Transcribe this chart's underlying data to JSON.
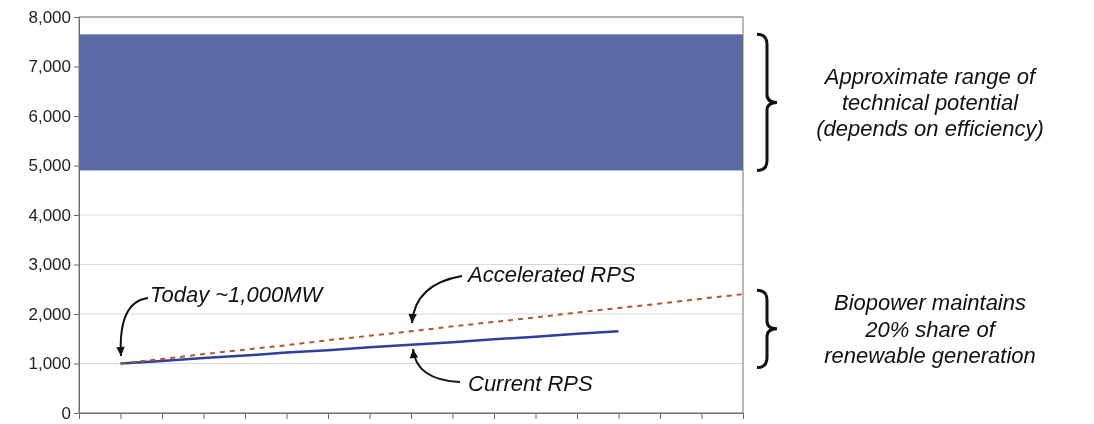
{
  "chart_data": {
    "type": "line",
    "categories": [
      null,
      null,
      null,
      null,
      null,
      null,
      null,
      null,
      null,
      null,
      null,
      null,
      null,
      null,
      null,
      null,
      null
    ],
    "ylim": [
      0,
      8000
    ],
    "yticks": [
      0,
      {
        "value": 1000,
        "label": "1,000"
      },
      {
        "value": 2000,
        "label": "2,000"
      },
      {
        "value": 3000,
        "label": "3,000"
      },
      {
        "value": 4000,
        "label": "4,000"
      },
      {
        "value": 5000,
        "label": "5,000"
      },
      {
        "value": 6000,
        "label": "6,000"
      },
      {
        "value": 7000,
        "label": "7,000"
      },
      {
        "value": 8000,
        "label": "8,000"
      }
    ],
    "tick_labels": "y",
    "grid": "y",
    "series": [
      {
        "color": "#2e3f9e",
        "line_style": "solid",
        "values": [
          null,
          1000,
          1050,
          1110,
          1160,
          1220,
          1270,
          1330,
          1380,
          1430,
          1490,
          1540,
          1600,
          1650,
          null,
          null,
          null
        ]
      },
      {
        "color": "#b5532a",
        "line_style": "dashed",
        "values": [
          null,
          1000,
          1090,
          1190,
          1280,
          1370,
          1470,
          1560,
          1650,
          1750,
          1840,
          1930,
          2030,
          2120,
          2210,
          2310,
          2400
        ]
      }
    ],
    "bands": [
      {
        "axis": "y",
        "from": 4900,
        "to": 7650,
        "color": "#5a6aa5"
      }
    ],
    "annotations": [
      "Approximate range of technical potential (depends on efficiency)",
      "Today ~1,000MW",
      "Accelerated RPS",
      "Current RPS",
      "Biopower maintains 20% share of renewable generation"
    ]
  }
}
